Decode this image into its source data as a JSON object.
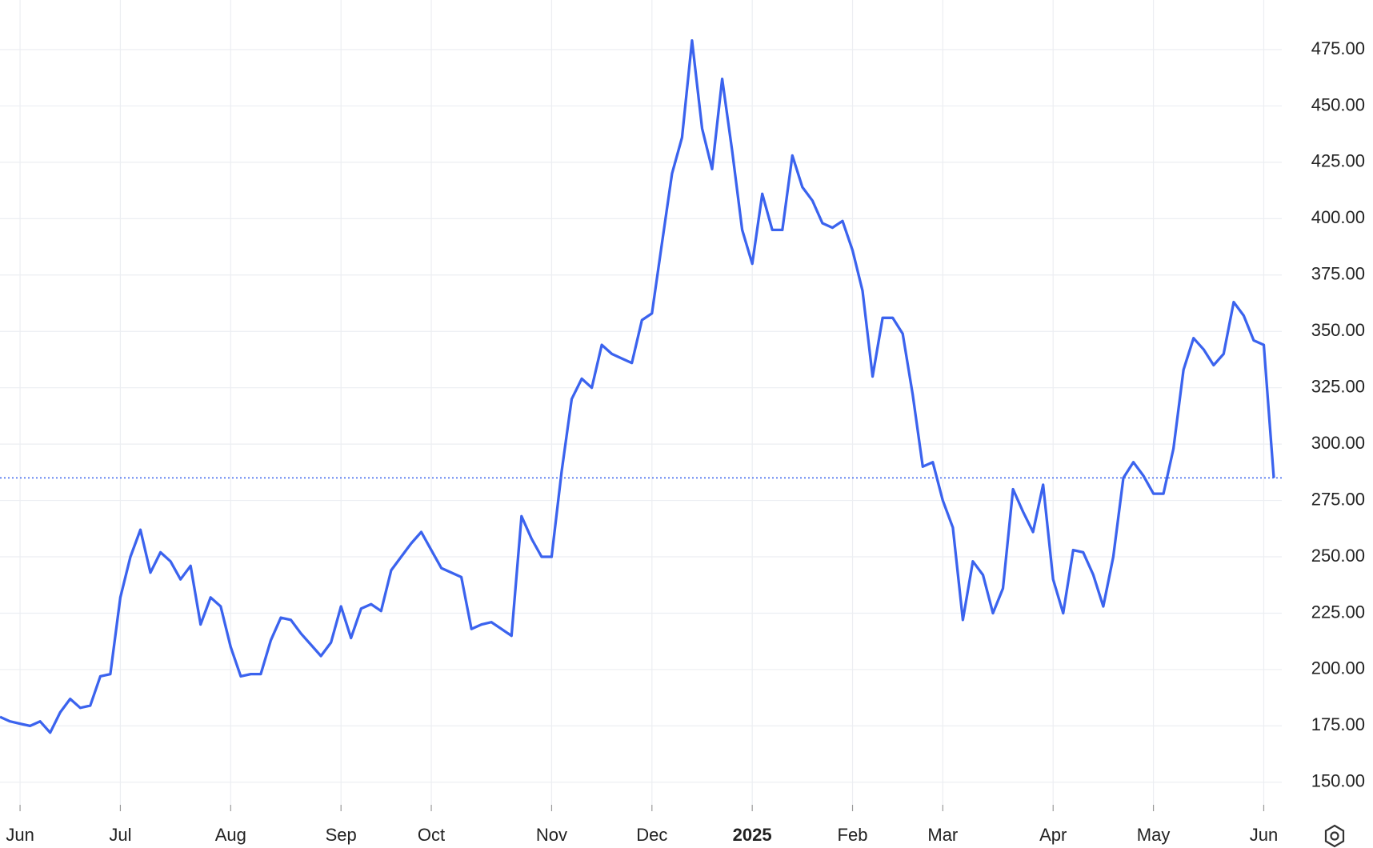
{
  "chart_data": {
    "type": "line",
    "categories": [
      null,
      null,
      "Jun",
      null,
      null,
      null,
      null,
      null,
      null,
      null,
      null,
      null,
      "Jul",
      null,
      null,
      null,
      null,
      null,
      null,
      null,
      null,
      null,
      null,
      "Aug",
      null,
      null,
      null,
      null,
      null,
      null,
      null,
      null,
      null,
      null,
      "Sep",
      null,
      null,
      null,
      null,
      null,
      null,
      null,
      null,
      "Oct",
      null,
      null,
      null,
      null,
      null,
      null,
      null,
      null,
      null,
      null,
      null,
      "Nov",
      null,
      null,
      null,
      null,
      null,
      null,
      null,
      null,
      null,
      "Dec",
      null,
      null,
      null,
      null,
      null,
      null,
      null,
      null,
      null,
      "2025",
      null,
      null,
      null,
      null,
      null,
      null,
      null,
      null,
      null,
      "Feb",
      null,
      null,
      null,
      null,
      null,
      null,
      null,
      null,
      "Mar",
      null,
      null,
      null,
      null,
      null,
      null,
      null,
      null,
      null,
      null,
      "Apr",
      null,
      null,
      null,
      null,
      null,
      null,
      null,
      null,
      null,
      "May",
      null,
      null,
      null,
      null,
      null,
      null,
      null,
      null,
      null,
      null,
      "Jun",
      null
    ],
    "series": [
      {
        "color": "#3b63ee",
        "values": [
          179,
          177,
          176,
          175,
          177,
          172,
          181,
          187,
          183,
          184,
          197,
          198,
          232,
          250,
          262,
          243,
          252,
          248,
          240,
          246,
          220,
          232,
          228,
          210,
          197,
          198,
          198,
          213,
          223,
          222,
          216,
          211,
          206,
          212,
          228,
          214,
          227,
          229,
          226,
          244,
          250,
          256,
          261,
          253,
          245,
          243,
          241,
          218,
          220,
          221,
          218,
          215,
          268,
          258,
          250,
          250,
          288,
          320,
          329,
          325,
          344,
          340,
          338,
          336,
          355,
          358,
          389,
          420,
          436,
          479,
          440,
          422,
          462,
          430,
          395,
          380,
          411,
          395,
          395,
          428,
          414,
          408,
          398,
          396,
          399,
          386,
          368,
          330,
          356,
          356,
          349,
          322,
          290,
          292,
          275,
          263,
          222,
          248,
          242,
          225,
          236,
          280,
          270,
          261,
          282,
          240,
          225,
          253,
          252,
          242,
          228,
          250,
          285,
          292,
          286,
          278,
          278,
          298,
          333,
          347,
          342,
          335,
          340,
          363,
          357,
          346,
          344,
          285
        ]
      }
    ],
    "ylim": [
      140,
      497
    ],
    "yticks": [
      {
        "value": 150,
        "label": "150.00"
      },
      {
        "value": 175,
        "label": "175.00"
      },
      {
        "value": 200,
        "label": "200.00"
      },
      {
        "value": 225,
        "label": "225.00"
      },
      {
        "value": 250,
        "label": "250.00"
      },
      {
        "value": 275,
        "label": "275.00"
      },
      {
        "value": 300,
        "label": "300.00"
      },
      {
        "value": 325,
        "label": "325.00"
      },
      {
        "value": 350,
        "label": "350.00"
      },
      {
        "value": 375,
        "label": "375.00"
      },
      {
        "value": 400,
        "label": "400.00"
      },
      {
        "value": 425,
        "label": "425.00"
      },
      {
        "value": 450,
        "label": "450.00"
      },
      {
        "value": 475,
        "label": "475.00"
      }
    ],
    "grid": true
  }
}
